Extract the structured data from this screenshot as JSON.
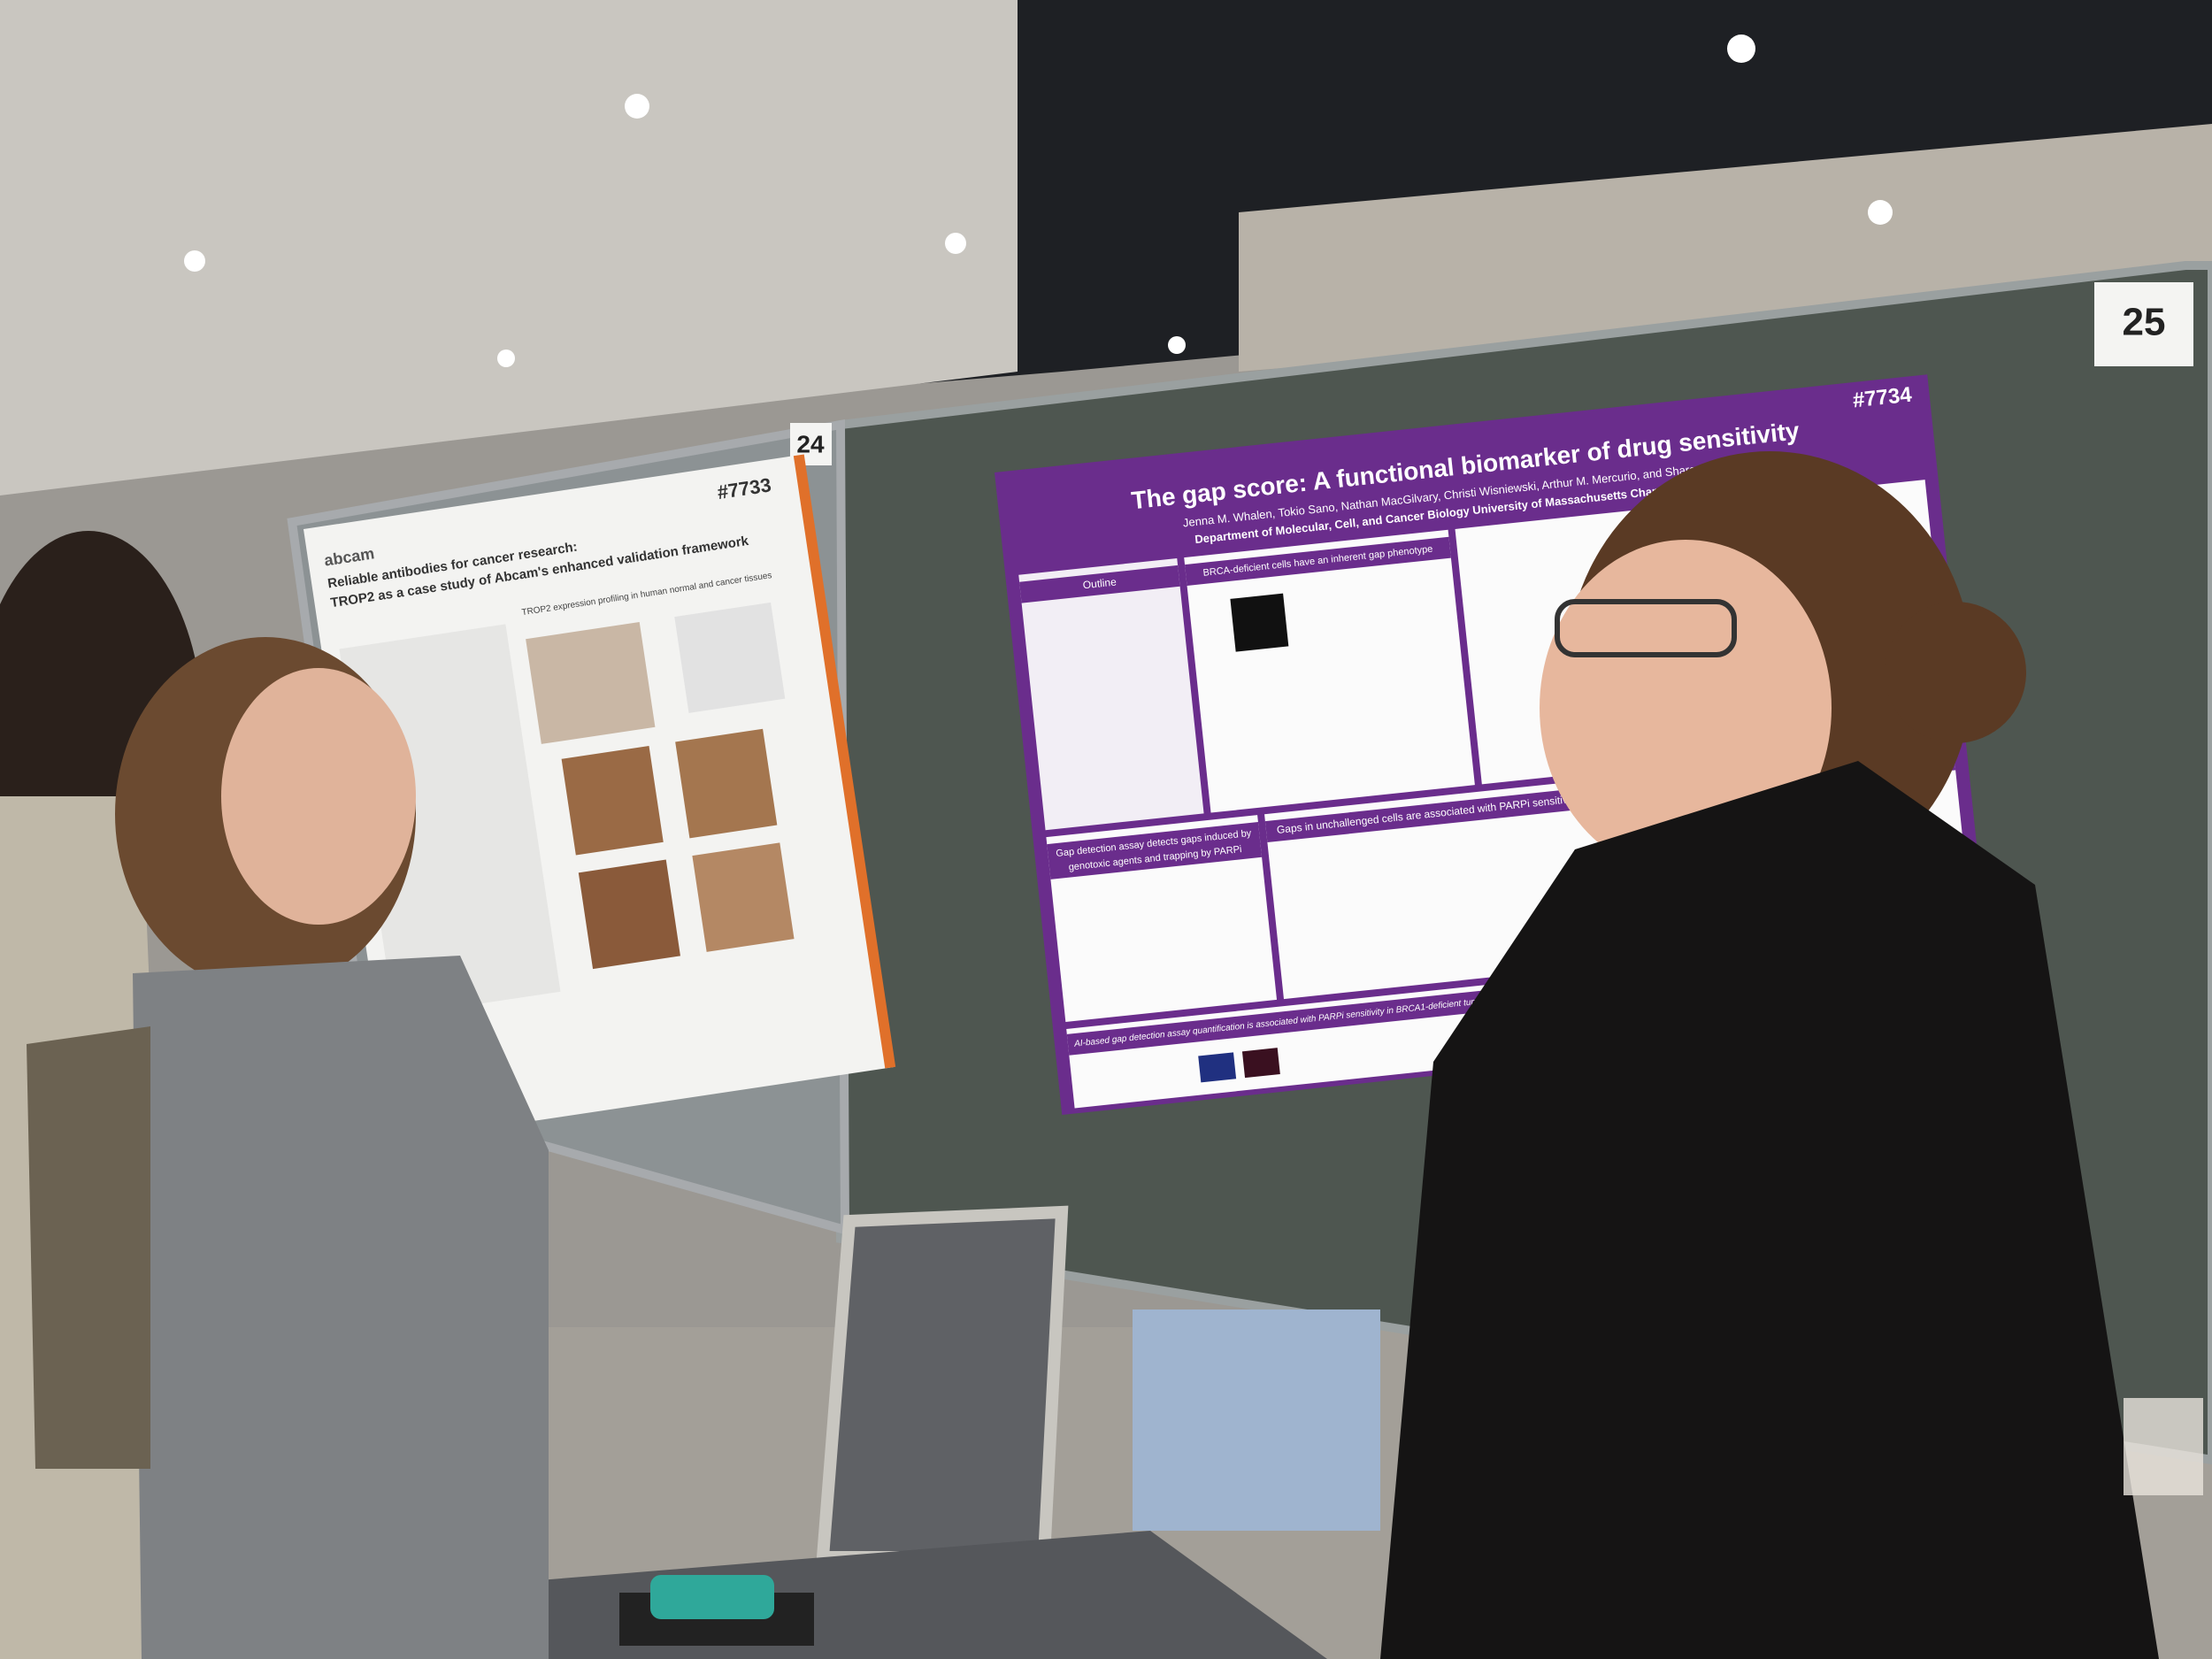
{
  "signs": {
    "board_25": "25",
    "board_24": "24"
  },
  "left_poster": {
    "number": "#7733",
    "brand": "abcam",
    "title_line_1": "Reliable antibodies for cancer research:",
    "title_line_2": "TROP2 as a case study of Abcam's enhanced validation framework",
    "section": "TROP2 expression profiling in human normal and cancer tissues"
  },
  "right_poster": {
    "number": "#7734",
    "title": "The gap score: A functional biomarker of drug sensitivity",
    "authors": "Jenna M. Whalen, Tokio Sano, Nathan MacGilvary, Christi Wisniewski, Arthur M. Mercurio, and Sharon B. Cantor",
    "affiliation": "Department of Molecular, Cell, and Cancer Biology University of Massachusetts Chan Medical School",
    "sections": [
      "Outline",
      "BRCA-deficient cells have an inherent gap phenotype",
      "Gap detection assay detects gaps induced by",
      "genotoxic agents and trapping by PARPi",
      "Gaps in unchallenged cells are associated with PARPi sensitivity if PARP1 is ac",
      "AI-based gap detection assay quantification is associated with PARPi sensitivity in BRCA1-deficient tumors."
    ]
  }
}
